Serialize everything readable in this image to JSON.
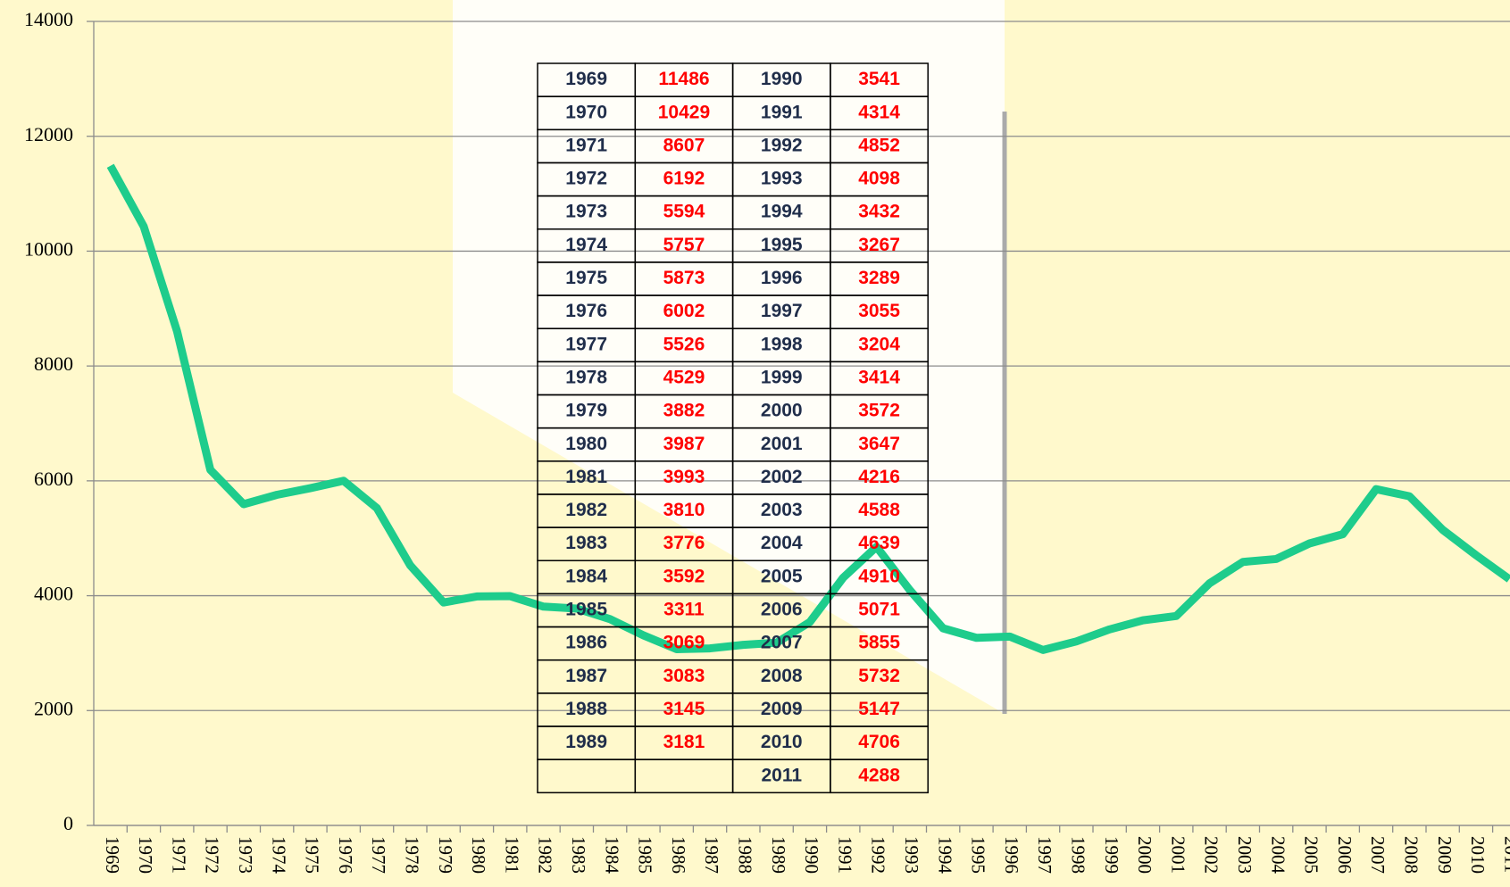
{
  "chart_data": {
    "type": "line",
    "categories": [
      "1969",
      "1970",
      "1971",
      "1972",
      "1973",
      "1974",
      "1975",
      "1976",
      "1977",
      "1978",
      "1979",
      "1980",
      "1981",
      "1982",
      "1983",
      "1984",
      "1985",
      "1986",
      "1987",
      "1988",
      "1989",
      "1990",
      "1991",
      "1992",
      "1993",
      "1994",
      "1995",
      "1996",
      "1997",
      "1998",
      "1999",
      "2000",
      "2001",
      "2002",
      "2003",
      "2004",
      "2005",
      "2006",
      "2007",
      "2008",
      "2009",
      "2010",
      "2011"
    ],
    "values": [
      11486,
      10429,
      8607,
      6192,
      5594,
      5757,
      5873,
      6002,
      5526,
      4529,
      3882,
      3987,
      3993,
      3810,
      3776,
      3592,
      3311,
      3069,
      3083,
      3145,
      3181,
      3541,
      4314,
      4852,
      4098,
      3432,
      3267,
      3289,
      3055,
      3204,
      3414,
      3572,
      3647,
      4216,
      4588,
      4639,
      4910,
      5071,
      5855,
      5732,
      5147,
      4706,
      4288
    ],
    "color": "#1ecc8c",
    "ylim": [
      0,
      14000
    ],
    "yticks": [
      0,
      2000,
      4000,
      6000,
      8000,
      10000,
      12000,
      14000
    ],
    "grid": true
  }
}
